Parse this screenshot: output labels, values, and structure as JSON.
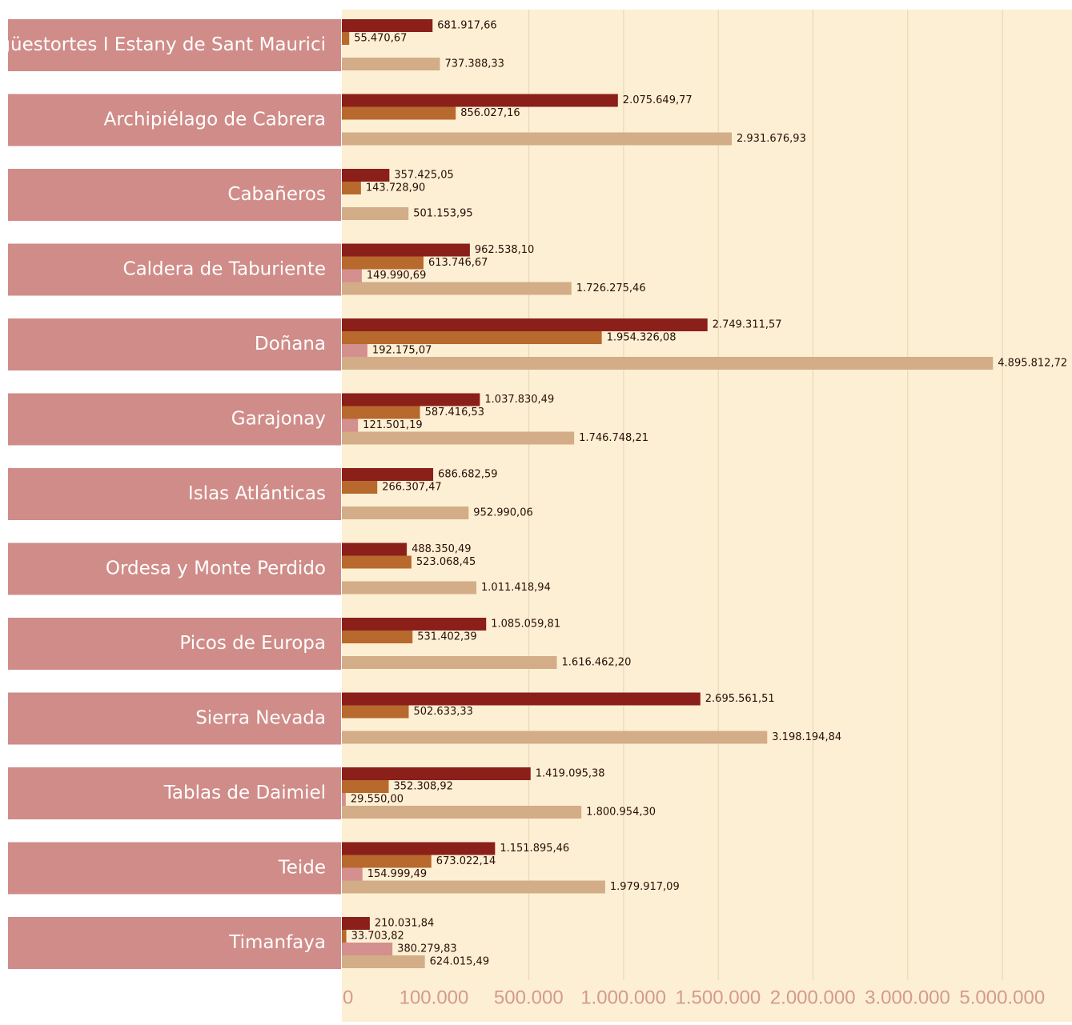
{
  "chart_data": {
    "type": "bar",
    "orientation": "horizontal",
    "categories": [
      "Aigüestortes I Estany de Sant Maurici",
      "Archipiélago de Cabrera",
      "Cabañeros",
      "Caldera de Taburiente",
      "Doñana",
      "Garajonay",
      "Islas Atlánticas",
      "Ordesa y Monte Perdido",
      "Picos de Europa",
      "Sierra Nevada",
      "Tablas de Daimiel",
      "Teide",
      "Timanfaya"
    ],
    "series": [
      {
        "color": "#8b1f1a",
        "values": [
          681917.66,
          2075649.77,
          357425.05,
          962538.1,
          2749311.57,
          1037830.49,
          686682.59,
          488350.49,
          1085059.81,
          2695561.51,
          1419095.38,
          1151895.46,
          210031.84
        ],
        "value_labels": [
          "681.917,66",
          "2.075.649,77",
          "357.425,05",
          "962.538,10",
          "2.749.311,57",
          "1.037.830,49",
          "686.682,59",
          "488.350,49",
          "1.085.059,81",
          "2.695.561,51",
          "1.419.095,38",
          "1.151.895,46",
          "210.031,84"
        ]
      },
      {
        "color": "#b8692e",
        "values": [
          55470.67,
          856027.16,
          143728.9,
          613746.67,
          1954326.08,
          587416.53,
          266307.47,
          523068.45,
          531402.39,
          502633.33,
          352308.92,
          673022.14,
          33703.82
        ],
        "value_labels": [
          "55.470,67",
          "856.027,16",
          "143.728,90",
          "613.746,67",
          "1.954.326,08",
          "587.416,53",
          "266.307,47",
          "523.068,45",
          "531.402,39",
          "502.633,33",
          "352.308,92",
          "673.022,14",
          "33.703,82"
        ]
      },
      {
        "color": "#d48f8f",
        "values": [
          null,
          null,
          null,
          149990.69,
          192175.07,
          121501.19,
          null,
          null,
          null,
          null,
          29550.0,
          154999.49,
          380279.83
        ],
        "value_labels": [
          null,
          null,
          null,
          "149.990,69",
          "192.175,07",
          "121.501,19",
          null,
          null,
          null,
          null,
          "29.550,00",
          "154.999,49",
          "380.279,83"
        ]
      },
      {
        "color": "#d2ad87",
        "values": [
          737388.33,
          2931676.93,
          501153.95,
          1726275.46,
          4895812.72,
          1746748.21,
          952990.06,
          1011418.94,
          1616462.2,
          3198194.84,
          1800954.3,
          1979917.09,
          624015.49
        ],
        "value_labels": [
          "737.388,33",
          "2.931.676,93",
          "501.153,95",
          "1.726.275,46",
          "4.895.812,72",
          "1.746.748,21",
          "952.990,06",
          "1.011.418,94",
          "1.616.462,20",
          "3.198.194,84",
          "1.800.954,30",
          "1.979.917,09",
          "624.015,49"
        ]
      }
    ],
    "xlim": [
      0,
      5490000
    ],
    "axis_labels": [
      "0",
      "100.000",
      "500.000",
      "1.000.000",
      "1.500.000",
      "2.000.000",
      "3.000.000",
      "5.000.000"
    ],
    "grid": true
  }
}
